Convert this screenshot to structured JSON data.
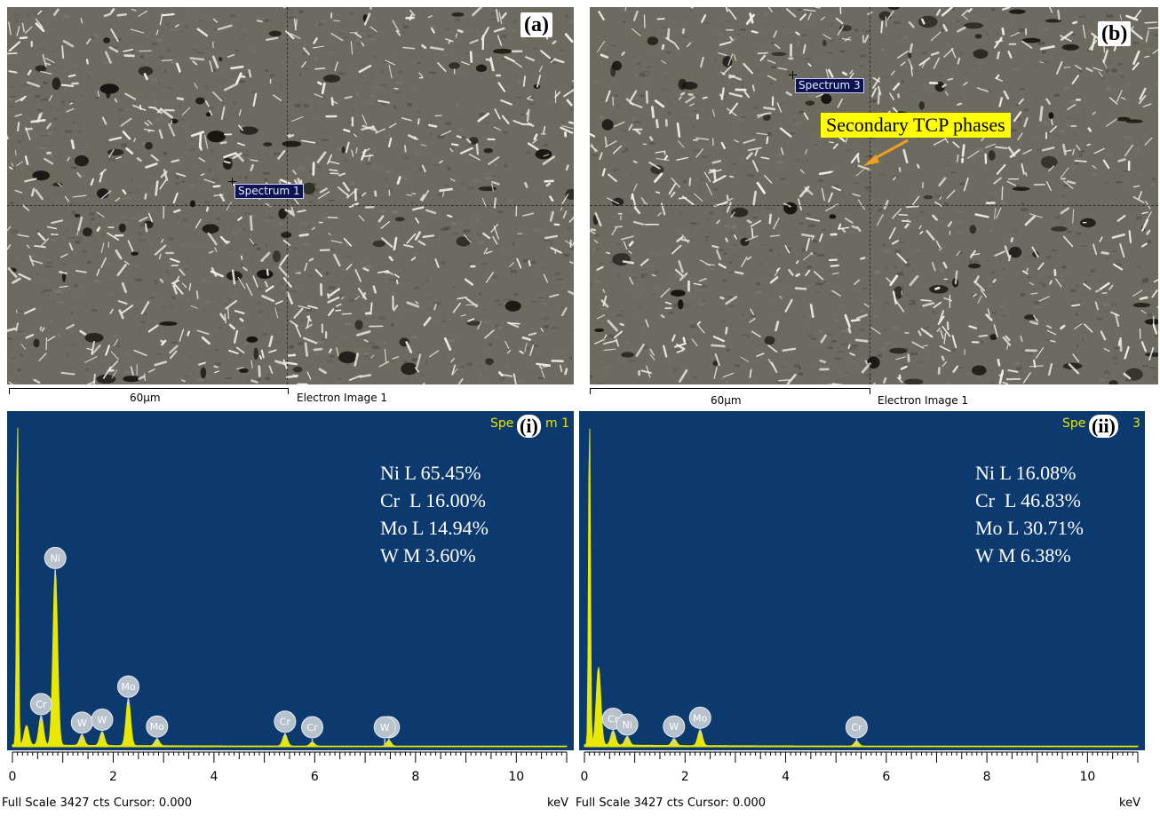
{
  "panels": {
    "a": {
      "letter": "(a)",
      "spectrum_label": "Spectrum 1",
      "scale_label": "60µm",
      "image_label": "Electron Image 1"
    },
    "b": {
      "letter": "(b)",
      "spectrum_label": "Spectrum 3",
      "scale_label": "60µm",
      "image_label": "Electron Image 1",
      "callout": "Secondary TCP phases"
    }
  },
  "eds": {
    "i": {
      "letter": "(i)",
      "title_left": "Spe",
      "title_right": "m 1",
      "composition": [
        "Ni L 65.45%",
        "Cr  L 16.00%",
        "Mo L 14.94%",
        "W M 3.60%"
      ],
      "footer": "Full Scale 3427 cts Cursor: 0.000",
      "unit": "keV"
    },
    "ii": {
      "letter": "(ii)",
      "title_left": "Spe",
      "title_right": "3",
      "composition": [
        "Ni L 16.08%",
        "Cr  L 46.83%",
        "Mo L 30.71%",
        "W M 6.38%"
      ],
      "footer": "Full Scale 3427 cts Cursor: 0.000",
      "unit": "keV"
    }
  },
  "chart_data": [
    {
      "type": "line",
      "title": "Spectrum 1",
      "xlabel": "keV",
      "xlim": [
        0,
        11
      ],
      "xticks": [
        "0",
        "2",
        "4",
        "6",
        "8",
        "10"
      ],
      "peak_labels": [
        {
          "element": "Cr",
          "x": 0.57
        },
        {
          "element": "Ni",
          "x": 0.85
        },
        {
          "element": "W",
          "x": 1.38
        },
        {
          "element": "W",
          "x": 1.78
        },
        {
          "element": "Mo",
          "x": 2.3
        },
        {
          "element": "Mo",
          "x": 2.87
        },
        {
          "element": "Cr",
          "x": 5.41
        },
        {
          "element": "Cr",
          "x": 5.95
        },
        {
          "element": "Ni",
          "x": 7.47
        },
        {
          "element": "W",
          "x": 7.39
        }
      ],
      "series": [
        {
          "x": [
            0.1,
            0.28,
            0.57,
            0.85,
            1.38,
            1.78,
            2.3,
            2.87,
            5.41,
            5.95,
            7.47
          ],
          "y": [
            3427,
            200,
            300,
            1800,
            110,
            140,
            480,
            70,
            120,
            40,
            60
          ]
        }
      ]
    },
    {
      "type": "line",
      "title": "Spectrum 3",
      "xlabel": "keV",
      "xlim": [
        0,
        11
      ],
      "xticks": [
        "0",
        "2",
        "4",
        "6",
        "8",
        "10"
      ],
      "peak_labels": [
        {
          "element": "Cr",
          "x": 0.57
        },
        {
          "element": "Ni",
          "x": 0.85
        },
        {
          "element": "W",
          "x": 1.78
        },
        {
          "element": "Mo",
          "x": 2.3
        },
        {
          "element": "Cr",
          "x": 5.41
        }
      ],
      "series": [
        {
          "x": [
            0.1,
            0.28,
            0.57,
            0.85,
            1.78,
            2.3,
            5.41
          ],
          "y": [
            3427,
            800,
            150,
            90,
            70,
            160,
            50
          ]
        }
      ]
    }
  ]
}
